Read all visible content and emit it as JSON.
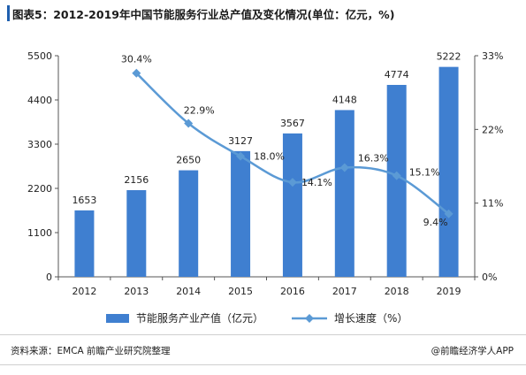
{
  "title": "图表5：2012-2019年中国节能服务行业总产值及变化情况(单位：亿元，%)",
  "source": "资料来源：EMCA 前瞻产业研究院整理",
  "brand": "@前瞻经济学人APP",
  "colors": {
    "bar": "#3f7fd0",
    "line": "#5b9ad5",
    "title_accent": "#1f5fae"
  },
  "chart_data": {
    "type": "bar",
    "categories": [
      "2012",
      "2013",
      "2014",
      "2015",
      "2016",
      "2017",
      "2018",
      "2019"
    ],
    "series": [
      {
        "name": "节能服务产业产值（亿元）",
        "type": "bar",
        "axis": "left",
        "values": [
          1653,
          2156,
          2650,
          3127,
          3567,
          4148,
          4774,
          5222
        ],
        "labels": [
          "1653",
          "2156",
          "2650",
          "3127",
          "3567",
          "4148",
          "4774",
          "5222"
        ]
      },
      {
        "name": "增长速度（%）",
        "type": "line",
        "axis": "right",
        "values": [
          null,
          30.4,
          22.9,
          18.0,
          14.1,
          16.3,
          15.1,
          9.4
        ],
        "labels": [
          "",
          "30.4%",
          "22.9%",
          "18.0%",
          "14.1%",
          "16.3%",
          "15.1%",
          "9.4%"
        ]
      }
    ],
    "y_left": {
      "min": 0,
      "max": 5500,
      "ticks": [
        "0",
        "1100",
        "2200",
        "3300",
        "4400",
        "5500"
      ]
    },
    "y_right": {
      "min": 0,
      "max": 33,
      "ticks": [
        "0%",
        "11%",
        "22%",
        "33%"
      ]
    },
    "grid": false,
    "legend": "bottom"
  }
}
